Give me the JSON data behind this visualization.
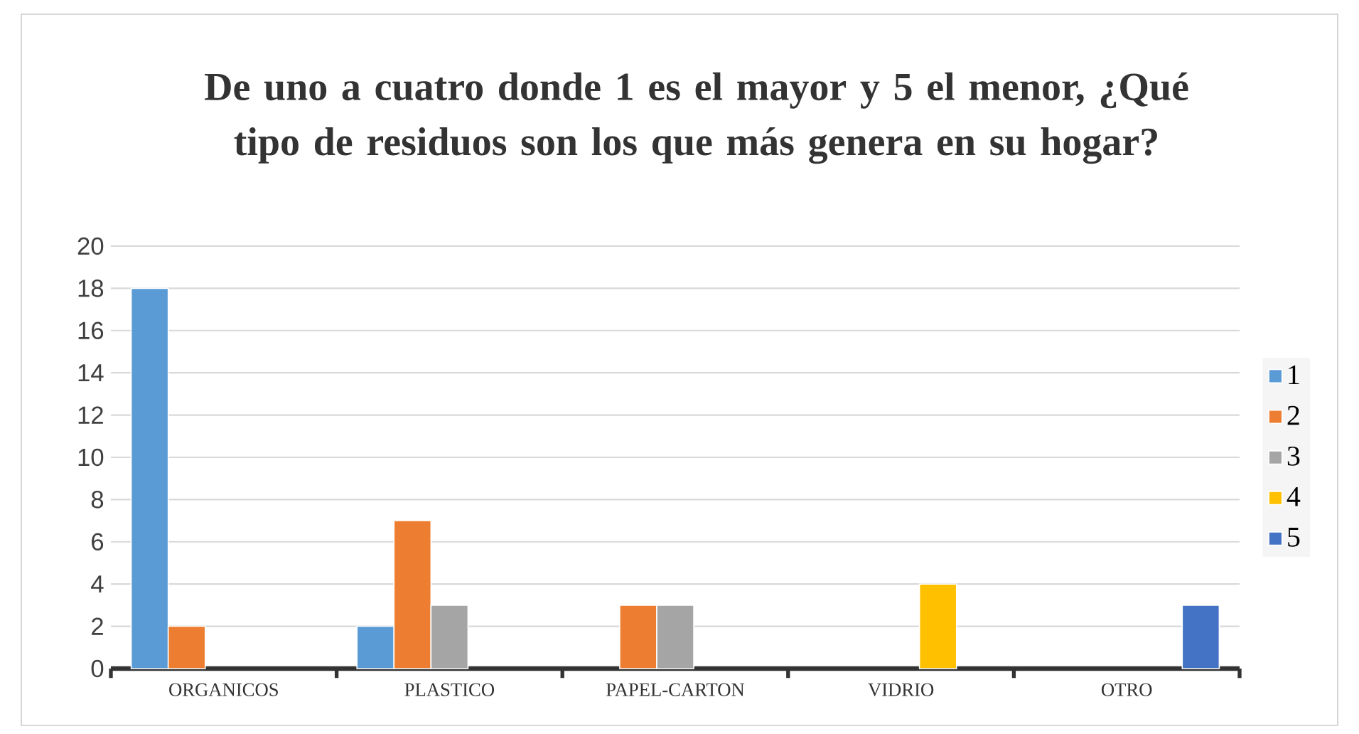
{
  "chart_data": {
    "type": "bar",
    "title": "De uno a cuatro donde 1 es el mayor y 5 el menor, ¿Qué tipo de residuos son los que más genera en su hogar?",
    "categories": [
      "ORGANICOS",
      "PLASTICO",
      "PAPEL-CARTON",
      "VIDRIO",
      "OTRO"
    ],
    "series": [
      {
        "name": "1",
        "color": "#5b9bd5",
        "values": [
          18,
          2,
          null,
          null,
          null
        ]
      },
      {
        "name": "2",
        "color": "#ed7d31",
        "values": [
          2,
          7,
          3,
          null,
          null
        ]
      },
      {
        "name": "3",
        "color": "#a5a5a5",
        "values": [
          null,
          3,
          3,
          null,
          null
        ]
      },
      {
        "name": "4",
        "color": "#ffc000",
        "values": [
          null,
          null,
          null,
          4,
          null
        ]
      },
      {
        "name": "5",
        "color": "#4472c4",
        "values": [
          null,
          null,
          null,
          null,
          3
        ]
      }
    ],
    "ylim": [
      0,
      20
    ],
    "yticks": [
      0,
      2,
      4,
      6,
      8,
      10,
      12,
      14,
      16,
      18,
      20
    ],
    "grid": "y",
    "legend": "right"
  }
}
